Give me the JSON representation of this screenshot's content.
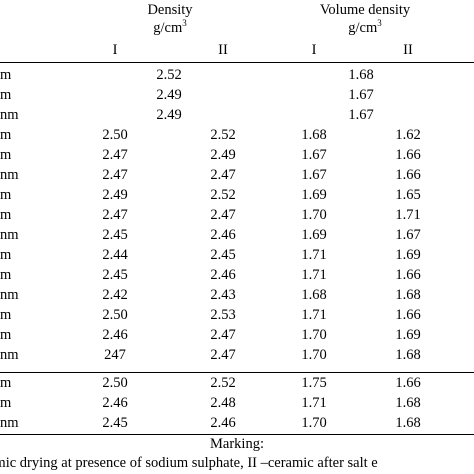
{
  "header": {
    "density_label": "Density",
    "density_unit_base": "g/cm",
    "density_unit_exp": "3",
    "volume_label": "Volume density",
    "volume_unit_base": "g/cm",
    "volume_unit_exp": "3",
    "sub_I_d": "I",
    "sub_II_d": "II",
    "sub_I_v": "I",
    "sub_II_v": "II"
  },
  "rows": [
    {
      "label": "m",
      "d1": "",
      "d2": "",
      "dmid": "2.52",
      "v1": "",
      "v2": "",
      "vmid": "1.68"
    },
    {
      "label": "m",
      "d1": "",
      "d2": "",
      "dmid": "2.49",
      "v1": "",
      "v2": "",
      "vmid": "1.67"
    },
    {
      "label": "nm",
      "d1": "",
      "d2": "",
      "dmid": "2.49",
      "v1": "",
      "v2": "",
      "vmid": "1.67"
    },
    {
      "label": "m",
      "d1": "2.50",
      "d2": "2.52",
      "dmid": "",
      "v1": "1.68",
      "v2": "1.62",
      "vmid": ""
    },
    {
      "label": "m",
      "d1": "2.47",
      "d2": "2.49",
      "dmid": "",
      "v1": "1.67",
      "v2": "1.66",
      "vmid": ""
    },
    {
      "label": "nm",
      "d1": "2.47",
      "d2": "2.47",
      "dmid": "",
      "v1": "1.67",
      "v2": "1.66",
      "vmid": ""
    },
    {
      "label": "m",
      "d1": "2.49",
      "d2": "2.52",
      "dmid": "",
      "v1": "1.69",
      "v2": "1.65",
      "vmid": ""
    },
    {
      "label": "m",
      "d1": "2.47",
      "d2": "2.47",
      "dmid": "",
      "v1": "1.70",
      "v2": "1.71",
      "vmid": ""
    },
    {
      "label": "nm",
      "d1": "2.45",
      "d2": "2.46",
      "dmid": "",
      "v1": "1.69",
      "v2": "1.67",
      "vmid": ""
    },
    {
      "label": "m",
      "d1": "2.44",
      "d2": "2.45",
      "dmid": "",
      "v1": "1.71",
      "v2": "1.69",
      "vmid": ""
    },
    {
      "label": "m",
      "d1": "2.45",
      "d2": "2.46",
      "dmid": "",
      "v1": "1.71",
      "v2": "1.66",
      "vmid": ""
    },
    {
      "label": "nm",
      "d1": "2.42",
      "d2": "2.43",
      "dmid": "",
      "v1": "1.68",
      "v2": "1.68",
      "vmid": ""
    },
    {
      "label": "m",
      "d1": "2.50",
      "d2": "2.53",
      "dmid": "",
      "v1": "1.71",
      "v2": "1.66",
      "vmid": ""
    },
    {
      "label": "m",
      "d1": "2.46",
      "d2": "2.47",
      "dmid": "",
      "v1": "1.70",
      "v2": "1.69",
      "vmid": ""
    },
    {
      "label": "nm",
      "d1": "247",
      "d2": "2.47",
      "dmid": "",
      "v1": "1.70",
      "v2": "1.68",
      "vmid": ""
    },
    {
      "label": "m",
      "d1": "2.50",
      "d2": "2.52",
      "dmid": "",
      "v1": "1.75",
      "v2": "1.66",
      "vmid": ""
    },
    {
      "label": "m",
      "d1": "2.46",
      "d2": "2.48",
      "dmid": "",
      "v1": "1.71",
      "v2": "1.68",
      "vmid": ""
    },
    {
      "label": "nm",
      "d1": "2.45",
      "d2": "2.46",
      "dmid": "",
      "v1": "1.70",
      "v2": "1.68",
      "vmid": ""
    }
  ],
  "footer": {
    "marking": "Marking:",
    "note": "amic drying at presence of sodium sulphate, II –ceramic after salt e"
  }
}
